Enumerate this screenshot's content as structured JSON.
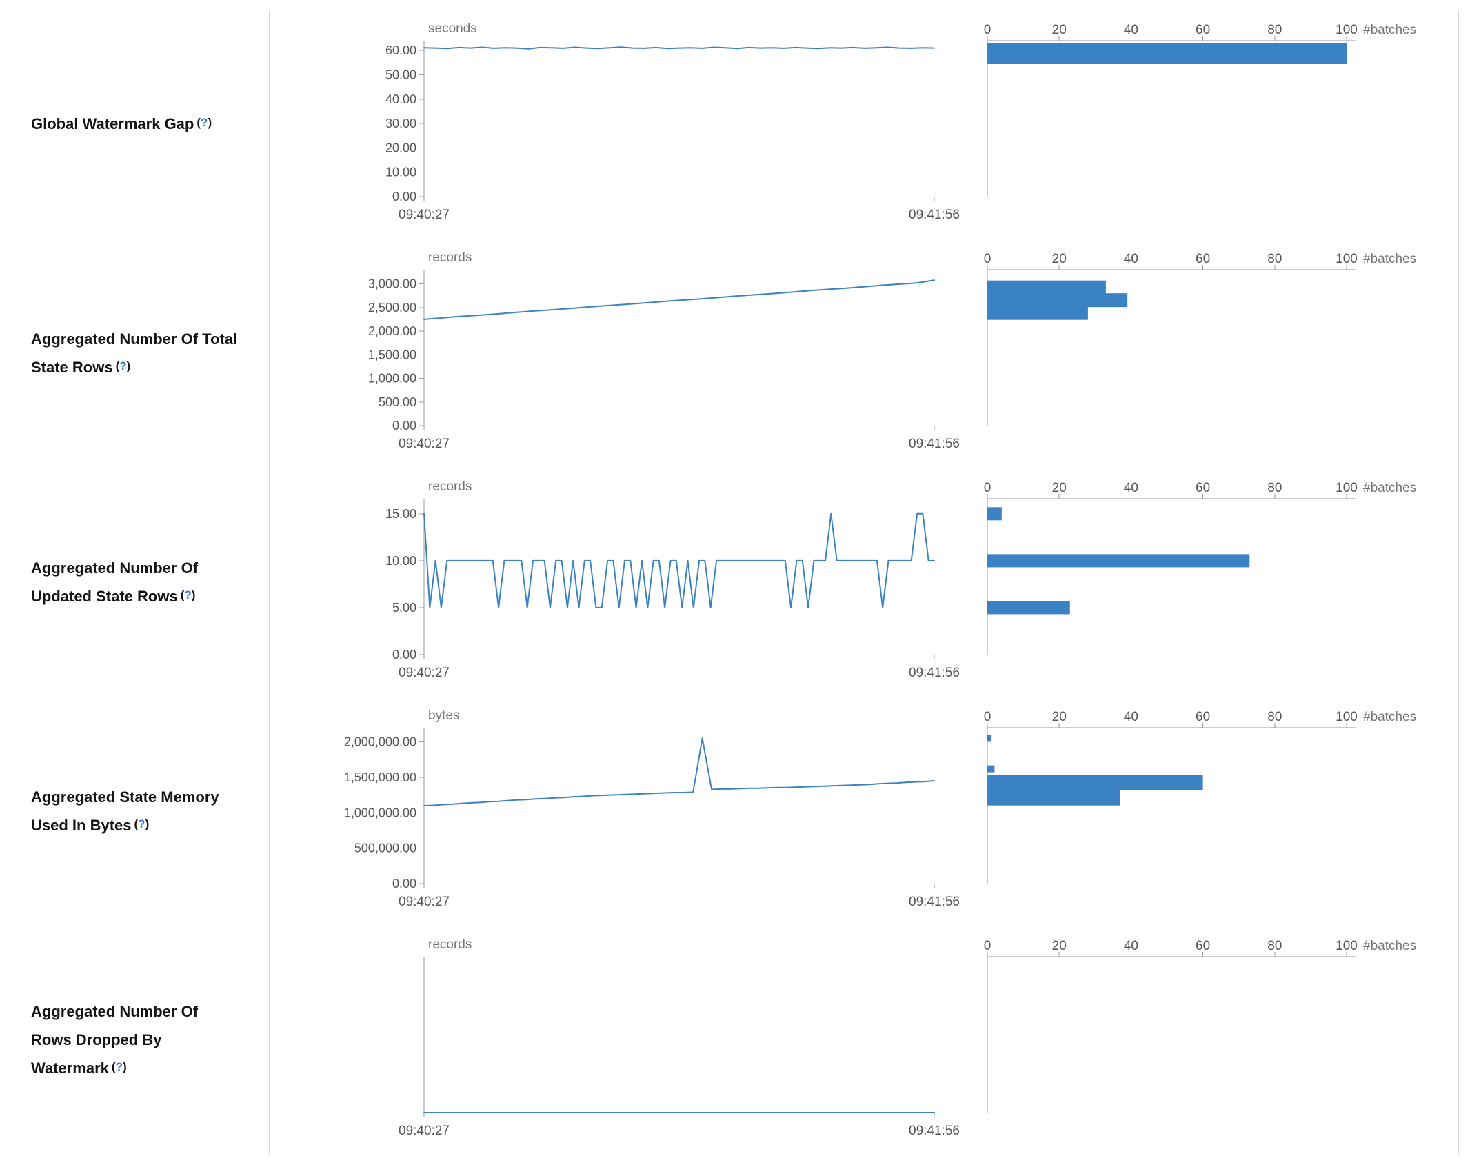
{
  "colors": {
    "accent": "#3b82c4",
    "axis": "#999999",
    "tick_text": "#555555",
    "unit_text": "#757575",
    "label_text": "#141414",
    "help": "#2f7ed8",
    "border": "#d8d8d8"
  },
  "histogram_axis": {
    "ticks": [
      0,
      20,
      40,
      60,
      80,
      100
    ],
    "tick_labels": [
      "0",
      "20",
      "40",
      "60",
      "80",
      "100"
    ],
    "unit": "#batches",
    "max": 100
  },
  "chart_data": [
    {
      "id": "global-watermark-gap",
      "label": "Global Watermark Gap",
      "help": {
        "open": "(",
        "q": "?",
        "close": ")"
      },
      "timeline": {
        "type": "line",
        "unit": "seconds",
        "x_labels": [
          "09:40:27",
          "09:41:56"
        ],
        "ymax": 64,
        "yticks": [
          60,
          50,
          40,
          30,
          20,
          10,
          0
        ],
        "ytick_labels": [
          "60.00",
          "50.00",
          "40.00",
          "30.00",
          "20.00",
          "10.00",
          "0.00"
        ],
        "values": [
          61.1,
          61.0,
          60.8,
          61.2,
          61.0,
          61.3,
          60.9,
          61.1,
          61.0,
          60.7,
          61.2,
          61.1,
          60.9,
          61.3,
          61.0,
          60.8,
          61.1,
          61.4,
          61.0,
          60.9,
          61.2,
          60.8,
          61.0,
          61.1,
          60.9,
          61.3,
          61.1,
          60.8,
          61.2,
          61.0,
          61.1,
          60.9,
          61.2,
          61.0,
          60.8,
          61.1,
          61.0,
          61.2,
          60.9,
          61.1,
          61.3,
          61.0,
          60.9,
          61.1,
          61.0
        ]
      },
      "histogram": {
        "type": "bar",
        "bars": [
          {
            "at": 61,
            "count": 100,
            "h": 30
          }
        ]
      }
    },
    {
      "id": "aggregated-total-state-rows",
      "label": "Aggregated Number Of Total State Rows",
      "help": {
        "open": "(",
        "q": "?",
        "close": ")"
      },
      "timeline": {
        "type": "line",
        "unit": "records",
        "x_labels": [
          "09:40:27",
          "09:41:56"
        ],
        "ymax": 3300,
        "yticks": [
          3000,
          2500,
          2000,
          1500,
          1000,
          500,
          0
        ],
        "ytick_labels": [
          "3,000.00",
          "2,500.00",
          "2,000.00",
          "1,500.00",
          "1,000.00",
          "500.00",
          "0.00"
        ],
        "values": [
          2250,
          2280,
          2310,
          2335,
          2360,
          2390,
          2420,
          2445,
          2470,
          2500,
          2530,
          2555,
          2580,
          2610,
          2640,
          2665,
          2690,
          2720,
          2750,
          2775,
          2800,
          2830,
          2860,
          2885,
          2910,
          2940,
          2970,
          2995,
          3020,
          3080
        ]
      },
      "histogram": {
        "type": "bar",
        "bars": [
          {
            "at": 2925,
            "count": 33,
            "h": 20
          },
          {
            "at": 2655,
            "count": 39,
            "h": 20
          },
          {
            "at": 2385,
            "count": 28,
            "h": 20
          }
        ]
      }
    },
    {
      "id": "aggregated-updated-state-rows",
      "label": "Aggregated Number Of Updated State Rows",
      "help": {
        "open": "(",
        "q": "?",
        "close": ")"
      },
      "timeline": {
        "type": "line",
        "unit": "records",
        "x_labels": [
          "09:40:27",
          "09:41:56"
        ],
        "ymax": 16.6,
        "yticks": [
          15,
          10,
          5,
          0
        ],
        "ytick_labels": [
          "15.00",
          "10.00",
          "5.00",
          "0.00"
        ],
        "values": [
          15,
          5,
          10,
          5,
          10,
          10,
          10,
          10,
          10,
          10,
          10,
          10,
          10,
          5,
          10,
          10,
          10,
          10,
          5,
          10,
          10,
          10,
          5,
          10,
          10,
          5,
          10,
          5,
          10,
          10,
          5,
          5,
          10,
          10,
          5,
          10,
          10,
          5,
          10,
          5,
          10,
          10,
          5,
          10,
          10,
          5,
          10,
          5,
          10,
          10,
          5,
          10,
          10,
          10,
          10,
          10,
          10,
          10,
          10,
          10,
          10,
          10,
          10,
          10,
          5,
          10,
          10,
          5,
          10,
          10,
          10,
          15,
          10,
          10,
          10,
          10,
          10,
          10,
          10,
          10,
          5,
          10,
          10,
          10,
          10,
          10,
          15,
          15,
          10,
          10
        ]
      },
      "histogram": {
        "type": "bar",
        "bars": [
          {
            "at": 15,
            "count": 4,
            "h": 19
          },
          {
            "at": 10,
            "count": 73,
            "h": 19
          },
          {
            "at": 5,
            "count": 23,
            "h": 19
          }
        ]
      }
    },
    {
      "id": "aggregated-state-memory-used",
      "label": "Aggregated State Memory Used In Bytes",
      "help": {
        "open": "(",
        "q": "?",
        "close": ")"
      },
      "timeline": {
        "type": "line",
        "unit": "bytes",
        "x_labels": [
          "09:40:27",
          "09:41:56"
        ],
        "ymax": 2200000,
        "yticks": [
          2000000,
          1500000,
          1000000,
          500000,
          0
        ],
        "ytick_labels": [
          "2,000,000.00",
          "1,500,000.00",
          "1,000,000.00",
          "500,000.00",
          "0.00"
        ],
        "values": [
          1100000,
          1105000,
          1115000,
          1120000,
          1130000,
          1140000,
          1145000,
          1155000,
          1160000,
          1170000,
          1180000,
          1185000,
          1195000,
          1200000,
          1210000,
          1215000,
          1225000,
          1230000,
          1240000,
          1245000,
          1250000,
          1255000,
          1260000,
          1265000,
          1270000,
          1275000,
          1280000,
          1285000,
          1285000,
          1290000,
          2050000,
          1330000,
          1335000,
          1335000,
          1340000,
          1345000,
          1345000,
          1350000,
          1355000,
          1355000,
          1360000,
          1365000,
          1370000,
          1375000,
          1380000,
          1385000,
          1390000,
          1395000,
          1400000,
          1410000,
          1415000,
          1420000,
          1430000,
          1435000,
          1440000,
          1450000
        ]
      },
      "histogram": {
        "type": "bar",
        "bars": [
          {
            "at": 2050000,
            "count": 1,
            "h": 10
          },
          {
            "at": 1620000,
            "count": 2,
            "h": 10
          },
          {
            "at": 1430000,
            "count": 60,
            "h": 22
          },
          {
            "at": 1210000,
            "count": 37,
            "h": 22
          }
        ]
      }
    },
    {
      "id": "aggregated-rows-dropped-by-watermark",
      "label": "Aggregated Number Of Rows Dropped By Watermark",
      "help": {
        "open": "(",
        "q": "?",
        "close": ")"
      },
      "timeline": {
        "type": "line",
        "unit": "records",
        "x_labels": [
          "09:40:27",
          "09:41:56"
        ],
        "ymax": 1,
        "yticks": [],
        "ytick_labels": [],
        "values": [
          0,
          0,
          0,
          0,
          0,
          0,
          0,
          0,
          0,
          0
        ]
      },
      "histogram": {
        "type": "bar",
        "bars": []
      }
    }
  ]
}
